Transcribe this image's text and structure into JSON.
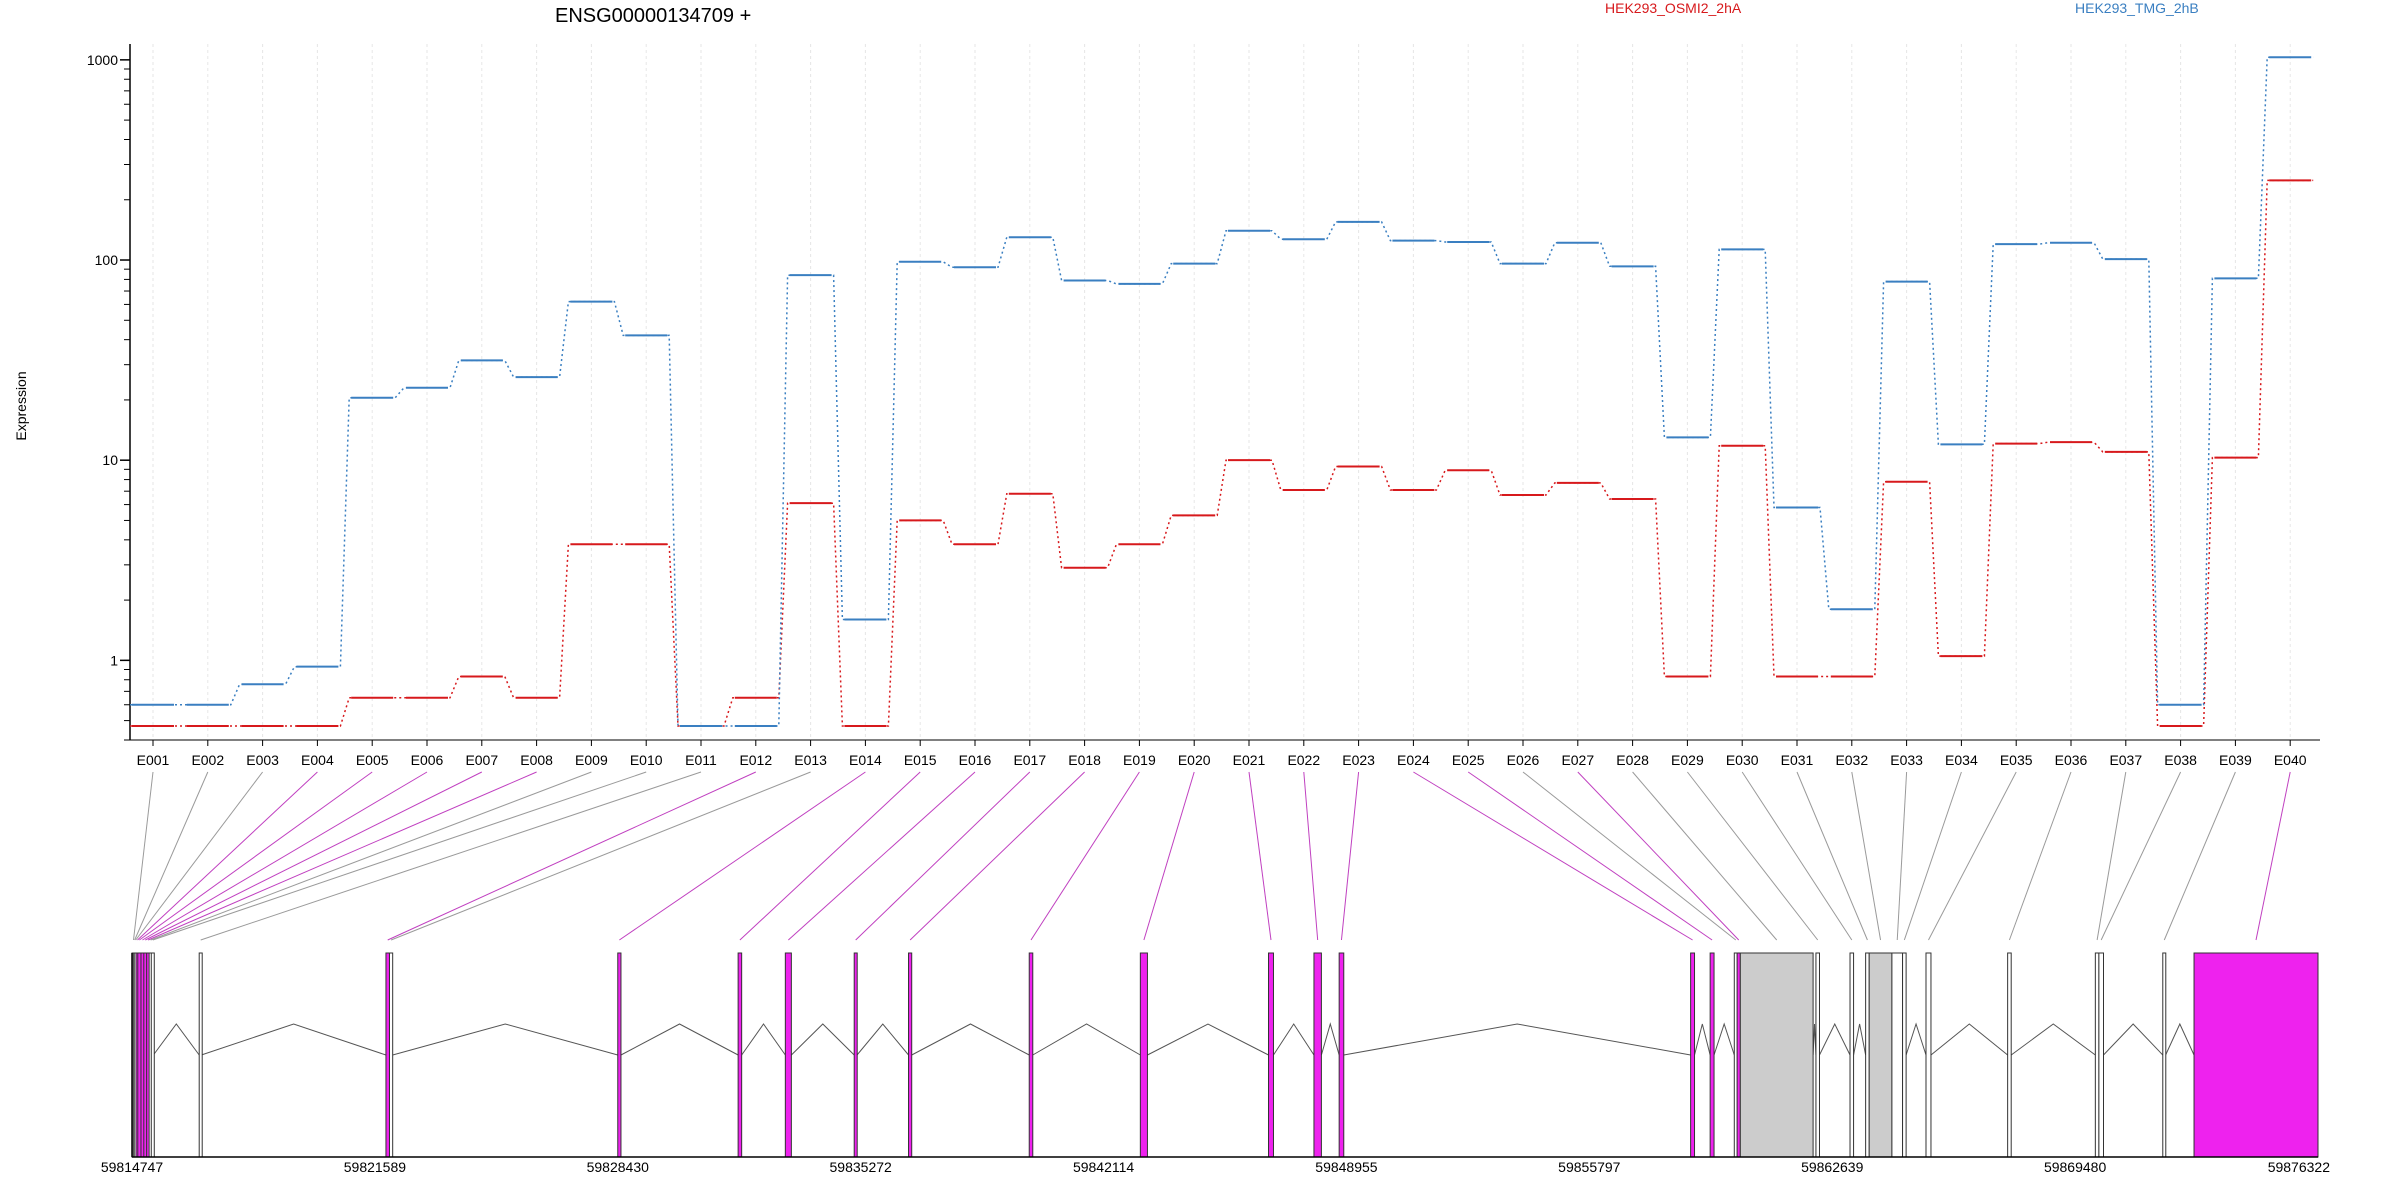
{
  "chart_data": {
    "type": "line",
    "title": "ENSG00000134709 +",
    "ylabel": "Expression",
    "xlabel": "",
    "yscale": "log",
    "ylim": [
      0.4,
      1200
    ],
    "yticks": [
      1,
      10,
      100,
      1000
    ],
    "ytick_labels": [
      "1",
      "10",
      "100",
      "1000"
    ],
    "grid": "vertical",
    "legend": "top",
    "categories": [
      "E001",
      "E002",
      "E003",
      "E004",
      "E005",
      "E006",
      "E007",
      "E008",
      "E009",
      "E010",
      "E011",
      "E012",
      "E013",
      "E014",
      "E015",
      "E016",
      "E017",
      "E018",
      "E019",
      "E020",
      "E021",
      "E022",
      "E023",
      "E024",
      "E025",
      "E026",
      "E027",
      "E028",
      "E029",
      "E030",
      "E031",
      "E032",
      "E033",
      "E034",
      "E035",
      "E036",
      "E037",
      "E038",
      "E039",
      "E040"
    ],
    "series": [
      {
        "name": "HEK293_OSMI2_2hA",
        "color": "#d7191c",
        "values": [
          0.47,
          0.47,
          0.47,
          0.47,
          0.65,
          0.65,
          0.83,
          0.65,
          3.8,
          3.8,
          0.47,
          0.65,
          6.1,
          0.47,
          5,
          3.8,
          6.8,
          2.9,
          3.8,
          5.3,
          10,
          7.1,
          9.3,
          7.1,
          8.9,
          6.7,
          7.7,
          6.4,
          0.83,
          11.8,
          0.83,
          0.83,
          7.8,
          1.05,
          12.1,
          12.3,
          11,
          0.47,
          10.3,
          250
        ]
      },
      {
        "name": "HEK293_TMG_2hB",
        "color": "#3a7fc1",
        "values": [
          0.6,
          0.6,
          0.76,
          0.93,
          20.5,
          23,
          31.5,
          26,
          62,
          42,
          0.47,
          0.47,
          84,
          1.6,
          98,
          92,
          130,
          79,
          76,
          96,
          140,
          127,
          155,
          125,
          123,
          96,
          122,
          93,
          13,
          113,
          5.8,
          1.8,
          78,
          12,
          120,
          122,
          101,
          0.6,
          81,
          1030
        ]
      }
    ],
    "gene_model": {
      "coordinate_labels": [
        "59814747",
        "59821589",
        "59828430",
        "59835272",
        "59842114",
        "59848955",
        "59855797",
        "59862639",
        "59869480",
        "59876322"
      ],
      "highlight_color": "#ee22ee",
      "exons": [
        {
          "id": "E001",
          "start": 59814747,
          "end": 59814780,
          "highlight": false
        },
        {
          "id": "E002",
          "start": 59814780,
          "end": 59814810,
          "highlight": false
        },
        {
          "id": "E003",
          "start": 59814810,
          "end": 59814860,
          "highlight": false
        },
        {
          "id": "E004",
          "start": 59814860,
          "end": 59814910,
          "highlight": true
        },
        {
          "id": "E005",
          "start": 59814910,
          "end": 59815000,
          "highlight": true
        },
        {
          "id": "E006",
          "start": 59815000,
          "end": 59815080,
          "highlight": true
        },
        {
          "id": "E007",
          "start": 59815080,
          "end": 59815160,
          "highlight": true
        },
        {
          "id": "E008",
          "start": 59815160,
          "end": 59815230,
          "highlight": true
        },
        {
          "id": "E009",
          "start": 59815230,
          "end": 59815290,
          "highlight": false
        },
        {
          "id": "E010",
          "start": 59815290,
          "end": 59815350,
          "highlight": false
        },
        {
          "id": "E011",
          "start": 59816640,
          "end": 59816700,
          "highlight": false
        },
        {
          "id": "E012",
          "start": 59821900,
          "end": 59822000,
          "highlight": true
        },
        {
          "id": "E013",
          "start": 59822000,
          "end": 59822090,
          "highlight": false
        },
        {
          "id": "E014",
          "start": 59828430,
          "end": 59828520,
          "highlight": true
        },
        {
          "id": "E015",
          "start": 59831820,
          "end": 59831920,
          "highlight": true
        },
        {
          "id": "E016",
          "start": 59833150,
          "end": 59833320,
          "highlight": true
        },
        {
          "id": "E017",
          "start": 59835090,
          "end": 59835170,
          "highlight": true
        },
        {
          "id": "E018",
          "start": 59836620,
          "end": 59836710,
          "highlight": true
        },
        {
          "id": "E019",
          "start": 59840020,
          "end": 59840120,
          "highlight": true
        },
        {
          "id": "E020",
          "start": 59843150,
          "end": 59843350,
          "highlight": true
        },
        {
          "id": "E021",
          "start": 59846760,
          "end": 59846900,
          "highlight": true
        },
        {
          "id": "E022",
          "start": 59848040,
          "end": 59848250,
          "highlight": true
        },
        {
          "id": "E023",
          "start": 59848750,
          "end": 59848880,
          "highlight": true
        },
        {
          "id": "E024",
          "start": 59858650,
          "end": 59858760,
          "highlight": true
        },
        {
          "id": "E025",
          "start": 59859200,
          "end": 59859310,
          "highlight": true
        },
        {
          "id": "E026",
          "start": 59859880,
          "end": 59859960,
          "highlight": false
        },
        {
          "id": "E027",
          "start": 59859960,
          "end": 59860050,
          "highlight": true
        },
        {
          "id": "E028",
          "start": 59860050,
          "end": 59862100,
          "highlight": false,
          "fill": "#cccccc"
        },
        {
          "id": "E029",
          "start": 59862180,
          "end": 59862280,
          "highlight": false
        },
        {
          "id": "E030",
          "start": 59863140,
          "end": 59863240,
          "highlight": false
        },
        {
          "id": "E031",
          "start": 59863580,
          "end": 59863680,
          "highlight": false
        },
        {
          "id": "E032",
          "start": 59863680,
          "end": 59864320,
          "highlight": false,
          "fill": "#cccccc"
        },
        {
          "id": "E033",
          "start": 59864320,
          "end": 59864620,
          "highlight": false
        },
        {
          "id": "E034",
          "start": 59864620,
          "end": 59864720,
          "highlight": false
        },
        {
          "id": "E035",
          "start": 59865280,
          "end": 59865420,
          "highlight": false
        },
        {
          "id": "E036",
          "start": 59867580,
          "end": 59867680,
          "highlight": false
        },
        {
          "id": "E037",
          "start": 59870050,
          "end": 59870150,
          "highlight": false
        },
        {
          "id": "E038",
          "start": 59870150,
          "end": 59870280,
          "highlight": false
        },
        {
          "id": "E039",
          "start": 59871950,
          "end": 59872030,
          "highlight": false
        },
        {
          "id": "E040",
          "start": 59872830,
          "end": 59876322,
          "highlight": true
        }
      ]
    }
  }
}
